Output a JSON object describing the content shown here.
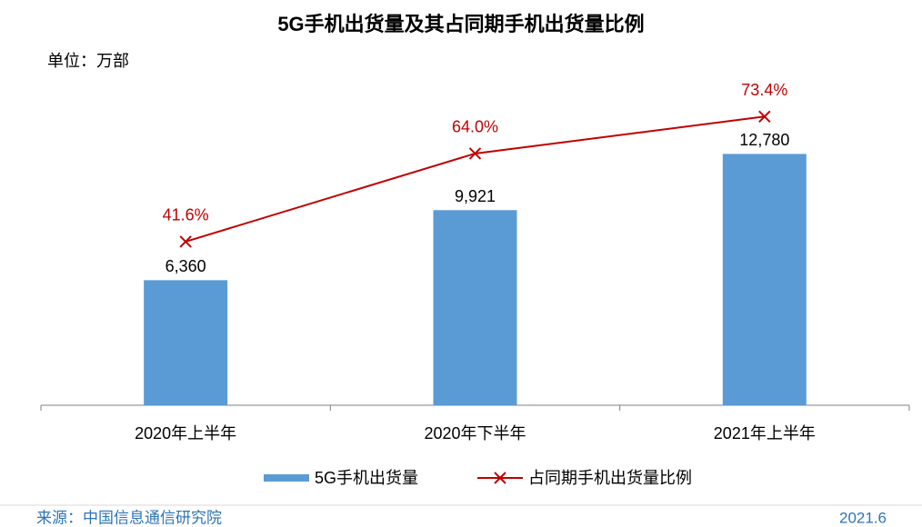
{
  "chart_data": {
    "type": "bar",
    "title": "5G手机出货量及其占同期手机出货量比例",
    "unit_label": "单位：万部",
    "categories": [
      "2020年上半年",
      "2020年下半年",
      "2021年上半年"
    ],
    "series": [
      {
        "name": "5G手机出货量",
        "type": "bar",
        "color": "#5b9bd5",
        "values": [
          6360,
          9921,
          12780
        ],
        "value_labels": [
          "6,360",
          "9,921",
          "12,780"
        ]
      },
      {
        "name": "占同期手机出货量比例",
        "type": "line",
        "axis": "y2",
        "color": "#c00000",
        "values": [
          41.6,
          64.0,
          73.4
        ],
        "value_labels": [
          "41.6%",
          "64.0%",
          "73.4%"
        ]
      }
    ],
    "ylim": [
      0,
      14000
    ],
    "y2lim": [
      0,
      70
    ],
    "source": "来源：中国信息通信研究院",
    "date": "2021.6"
  }
}
